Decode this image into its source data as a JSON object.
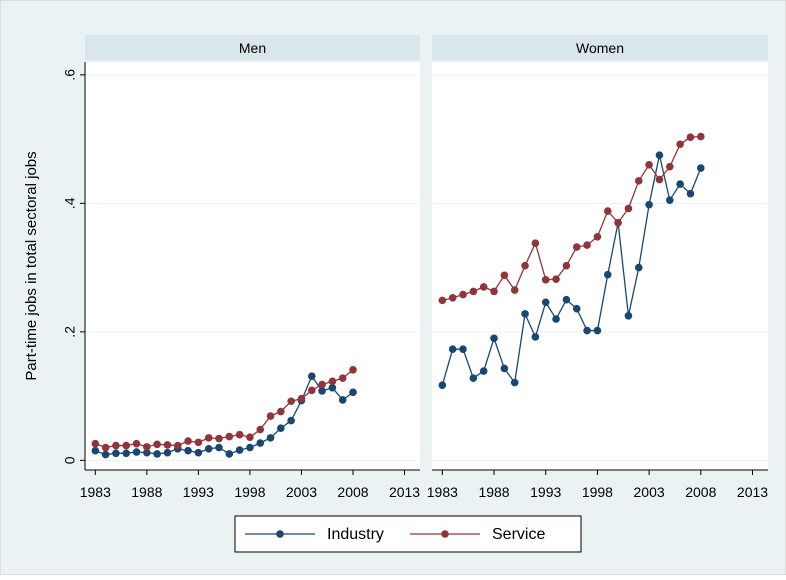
{
  "chart_data": [
    {
      "type": "line",
      "title": "Men",
      "ylabel": "Part-time jobs in total sectoral jobs",
      "x": [
        1983,
        1984,
        1985,
        1986,
        1987,
        1988,
        1989,
        1990,
        1991,
        1992,
        1993,
        1994,
        1995,
        1996,
        1997,
        1998,
        1999,
        2000,
        2001,
        2002,
        2003,
        2004,
        2005,
        2006,
        2007,
        2008
      ],
      "series": [
        {
          "name": "Industry",
          "color": "#1a476f",
          "values": [
            0.015,
            0.009,
            0.011,
            0.011,
            0.013,
            0.012,
            0.01,
            0.012,
            0.018,
            0.015,
            0.012,
            0.018,
            0.02,
            0.01,
            0.016,
            0.02,
            0.027,
            0.035,
            0.05,
            0.062,
            0.093,
            0.131,
            0.108,
            0.113,
            0.094,
            0.106
          ]
        },
        {
          "name": "Service",
          "color": "#90353b",
          "values": [
            0.026,
            0.02,
            0.023,
            0.023,
            0.026,
            0.021,
            0.025,
            0.024,
            0.023,
            0.03,
            0.028,
            0.035,
            0.034,
            0.037,
            0.04,
            0.036,
            0.048,
            0.069,
            0.076,
            0.092,
            0.096,
            0.109,
            0.118,
            0.123,
            0.128,
            0.141
          ]
        }
      ],
      "xlim": [
        1982,
        2014.5
      ],
      "ylim": [
        -0.015,
        0.62
      ],
      "xticks": [
        1983,
        1988,
        1993,
        1998,
        2003,
        2008,
        2013
      ],
      "yticks": [
        0,
        {
          "value": 0.2,
          "label": ".2"
        },
        {
          "value": 0.4,
          "label": ".4"
        },
        {
          "value": 0.6,
          "label": ".6"
        }
      ],
      "grid": true
    },
    {
      "type": "line",
      "title": "Women",
      "x": [
        1983,
        1984,
        1985,
        1986,
        1987,
        1988,
        1989,
        1990,
        1991,
        1992,
        1993,
        1994,
        1995,
        1996,
        1997,
        1998,
        1999,
        2000,
        2001,
        2002,
        2003,
        2004,
        2005,
        2006,
        2007,
        2008
      ],
      "series": [
        {
          "name": "Industry",
          "color": "#1a476f",
          "values": [
            0.117,
            0.173,
            0.173,
            0.128,
            0.139,
            0.19,
            0.143,
            0.121,
            0.228,
            0.192,
            0.246,
            0.22,
            0.25,
            0.236,
            0.202,
            0.202,
            0.289,
            0.37,
            0.225,
            0.3,
            0.398,
            0.475,
            0.405,
            0.43,
            0.415,
            0.455
          ]
        },
        {
          "name": "Service",
          "color": "#90353b",
          "values": [
            0.249,
            0.253,
            0.258,
            0.263,
            0.27,
            0.263,
            0.288,
            0.265,
            0.303,
            0.338,
            0.281,
            0.282,
            0.303,
            0.332,
            0.335,
            0.348,
            0.388,
            0.37,
            0.392,
            0.435,
            0.46,
            0.437,
            0.457,
            0.492,
            0.503,
            0.504
          ]
        }
      ],
      "xlim": [
        1982,
        2014.5
      ],
      "ylim": [
        -0.015,
        0.62
      ],
      "xticks": [
        1983,
        1988,
        1993,
        1998,
        2003,
        2008,
        2013
      ],
      "yticks": [
        0,
        0.2,
        0.4,
        0.6
      ],
      "grid": true
    }
  ]
}
